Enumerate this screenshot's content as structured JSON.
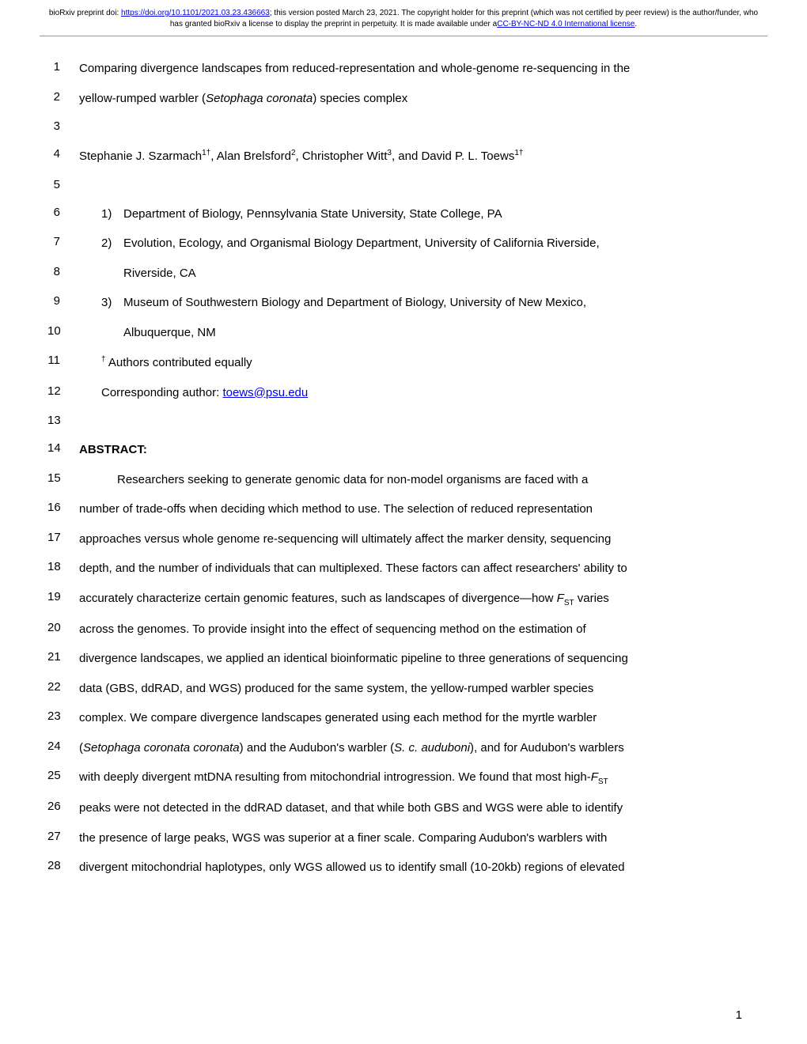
{
  "header": {
    "doi_prefix": "bioRxiv preprint doi: ",
    "doi_url": "https://doi.org/10.1101/2021.03.23.436663",
    "doi_suffix": "; this version posted March 23, 2021. The copyright holder for this preprint (which was not certified by peer review) is the author/funder, who has granted bioRxiv a license to display the preprint in perpetuity. It is made available under a",
    "license_text": "CC-BY-NC-ND 4.0 International license",
    "license_suffix": "."
  },
  "lines": {
    "l1_a": "Comparing divergence landscapes from reduced-representation and whole-genome re-sequencing in the",
    "l2_a": "yellow-rumped warbler (",
    "l2_i": "Setophaga coronata",
    "l2_b": ") species complex",
    "l4_a": "Stephanie J. Szarmach",
    "l4_s1": "1†",
    "l4_b": ", Alan Brelsford",
    "l4_s2": "2",
    "l4_c": ", Christopher Witt",
    "l4_s3": "3",
    "l4_d": ", and David P. L. Toews",
    "l4_s4": "1†",
    "l6_n": "1)",
    "l6_a": "Department of Biology, Pennsylvania State University, State College, PA",
    "l7_n": "2)",
    "l7_a": "Evolution, Ecology, and Organismal Biology Department, University of California Riverside,",
    "l8_a": "Riverside, CA",
    "l9_n": "3)",
    "l9_a": "Museum of Southwestern Biology and Department of Biology, University of New Mexico,",
    "l10_a": "Albuquerque, NM",
    "l11_s": "†",
    "l11_a": " Authors contributed equally",
    "l12_a": " Corresponding author: ",
    "l12_link": "toews@psu.edu",
    "l14_a": "ABSTRACT:",
    "l15_a": "Researchers seeking to generate genomic data for non-model organisms are faced with a",
    "l16_a": "number of trade-offs when deciding which method to use. The selection of reduced representation",
    "l17_a": "approaches versus whole genome re-sequencing will ultimately affect the marker density, sequencing",
    "l18_a": "depth, and the number of individuals that can multiplexed. These factors can affect researchers' ability to",
    "l19_a": "accurately characterize certain genomic features, such as landscapes of divergence—how ",
    "l19_i": "F",
    "l19_sub": "ST",
    "l19_b": " varies",
    "l20_a": "across the genomes. To provide insight into the effect of sequencing method on the estimation of",
    "l21_a": "divergence landscapes, we applied an identical bioinformatic pipeline to three generations of sequencing",
    "l22_a": "data (GBS, ddRAD, and WGS) produced for the same system, the yellow-rumped warbler species",
    "l23_a": "complex. We compare divergence landscapes generated using each method for the myrtle warbler",
    "l24_a": "(",
    "l24_i1": "Setophaga coronata coronata",
    "l24_b": ") and the Audubon's warbler (",
    "l24_i2": "S. c. auduboni",
    "l24_c": "), and for Audubon's warblers",
    "l25_a": "with deeply divergent mtDNA resulting from mitochondrial introgression. We found that most high-",
    "l25_i": "F",
    "l25_sub": "ST",
    "l26_a": "peaks were not detected in the ddRAD dataset, and that while both GBS and WGS were able to identify",
    "l27_a": "the presence of large peaks, WGS was superior at a finer scale. Comparing Audubon's warblers with",
    "l28_a": "divergent mitochondrial haplotypes, only WGS allowed us to identify small (10-20kb) regions of elevated"
  },
  "line_numbers": {
    "n1": "1",
    "n2": "2",
    "n3": "3",
    "n4": "4",
    "n5": "5",
    "n6": "6",
    "n7": "7",
    "n8": "8",
    "n9": "9",
    "n10": "10",
    "n11": "11",
    "n12": "12",
    "n13": "13",
    "n14": "14",
    "n15": "15",
    "n16": "16",
    "n17": "17",
    "n18": "18",
    "n19": "19",
    "n20": "20",
    "n21": "21",
    "n22": "22",
    "n23": "23",
    "n24": "24",
    "n25": "25",
    "n26": "26",
    "n27": "27",
    "n28": "28"
  },
  "page_number": "1"
}
